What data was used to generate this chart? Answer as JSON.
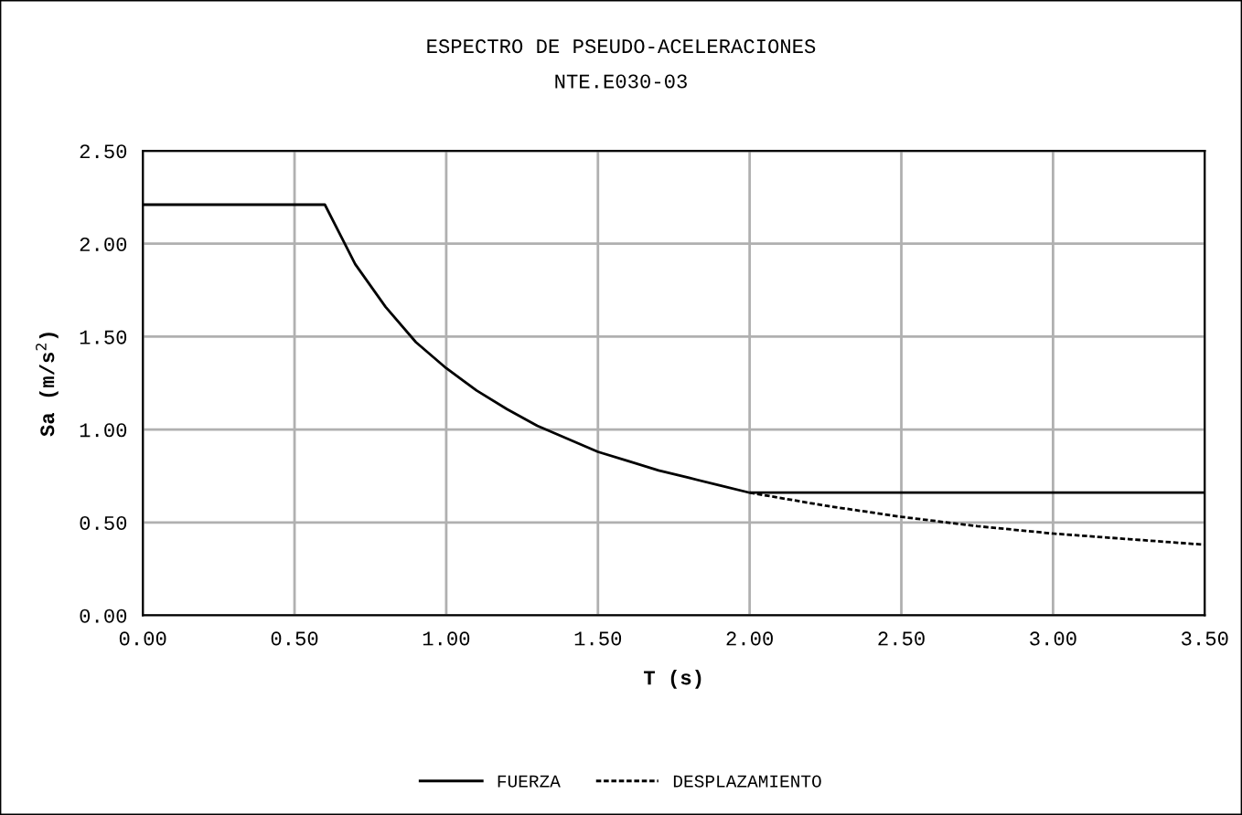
{
  "chart_data": {
    "type": "line",
    "title": "ESPECTRO DE PSEUDO-ACELERACIONES",
    "subtitle": "NTE.E030-03",
    "xlabel": "T (s)",
    "ylabel": "Sa (m/s$^{2}$)",
    "xlim": [
      0,
      3.5
    ],
    "ylim": [
      0,
      2.5
    ],
    "xticks": [
      {
        "value": 0,
        "label": "0.00"
      },
      {
        "value": 0.5,
        "label": "0.50"
      },
      {
        "value": 1,
        "label": "1.00"
      },
      {
        "value": 1.5,
        "label": "1.50"
      },
      {
        "value": 2,
        "label": "2.00"
      },
      {
        "value": 2.5,
        "label": "2.50"
      },
      {
        "value": 3,
        "label": "3.00"
      },
      {
        "value": 3.5,
        "label": "3.50"
      }
    ],
    "yticks": [
      {
        "value": 0,
        "label": "0.00"
      },
      {
        "value": 0.5,
        "label": "0.50"
      },
      {
        "value": 1,
        "label": "1.00"
      },
      {
        "value": 1.5,
        "label": "1.50"
      },
      {
        "value": 2,
        "label": "2.00"
      },
      {
        "value": 2.5,
        "label": "2.50"
      }
    ],
    "grid": true,
    "legend": "bottom",
    "series": [
      {
        "name": "FUERZA",
        "color": "#000000",
        "line_style": "solid",
        "x": [
          0,
          0.6,
          0.7,
          0.8,
          0.9,
          1.0,
          1.1,
          1.2,
          1.3,
          1.4,
          1.5,
          1.6,
          1.7,
          1.8,
          1.9,
          2.0,
          3.5
        ],
        "values": [
          2.21,
          2.21,
          1.89,
          1.66,
          1.47,
          1.33,
          1.21,
          1.11,
          1.02,
          0.95,
          0.88,
          0.83,
          0.78,
          0.74,
          0.7,
          0.66,
          0.66
        ]
      },
      {
        "name": "DESPLAZAMIENTO",
        "color": "#000000",
        "line_style": "dotted",
        "x": [
          2.0,
          2.25,
          2.5,
          2.75,
          3.0,
          3.25,
          3.5
        ],
        "values": [
          0.66,
          0.59,
          0.53,
          0.48,
          0.44,
          0.41,
          0.38
        ]
      }
    ]
  }
}
